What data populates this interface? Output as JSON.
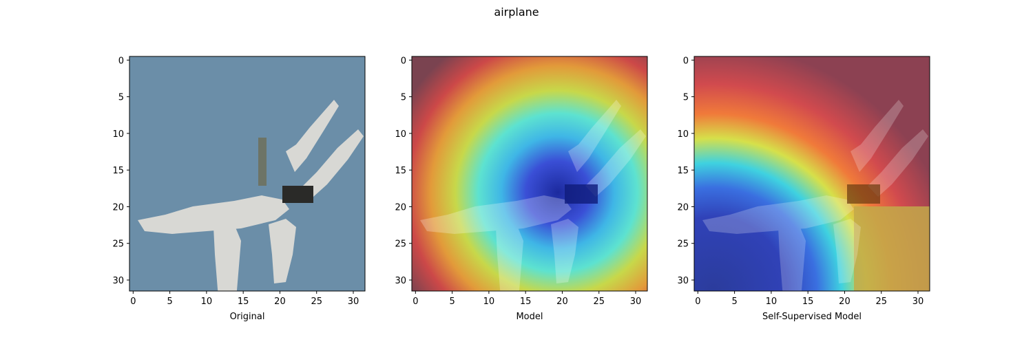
{
  "figure": {
    "title": "airplane"
  },
  "chart_data": [
    {
      "type": "heatmap",
      "xlabel": "Original",
      "xlim": [
        -0.5,
        31.5
      ],
      "ylim": [
        31.5,
        -0.5
      ],
      "xticks": [
        0,
        5,
        10,
        15,
        20,
        25,
        30
      ],
      "yticks": [
        0,
        5,
        10,
        15,
        20,
        25,
        30
      ],
      "content": "CIFAR-10 airplane image"
    },
    {
      "type": "heatmap",
      "xlabel": "Model",
      "xlim": [
        -0.5,
        31.5
      ],
      "ylim": [
        31.5,
        -0.5
      ],
      "xticks": [
        0,
        5,
        10,
        15,
        20,
        25,
        30
      ],
      "yticks": [
        0,
        5,
        10,
        15,
        20,
        25,
        30
      ],
      "colormap": "jet",
      "content": "saliency overlay"
    },
    {
      "type": "heatmap",
      "xlabel": "Self-Supervised Model",
      "xlim": [
        -0.5,
        31.5
      ],
      "ylim": [
        31.5,
        -0.5
      ],
      "xticks": [
        0,
        5,
        10,
        15,
        20,
        25,
        30
      ],
      "yticks": [
        0,
        5,
        10,
        15,
        20,
        25,
        30
      ],
      "colormap": "jet",
      "content": "saliency overlay"
    }
  ]
}
